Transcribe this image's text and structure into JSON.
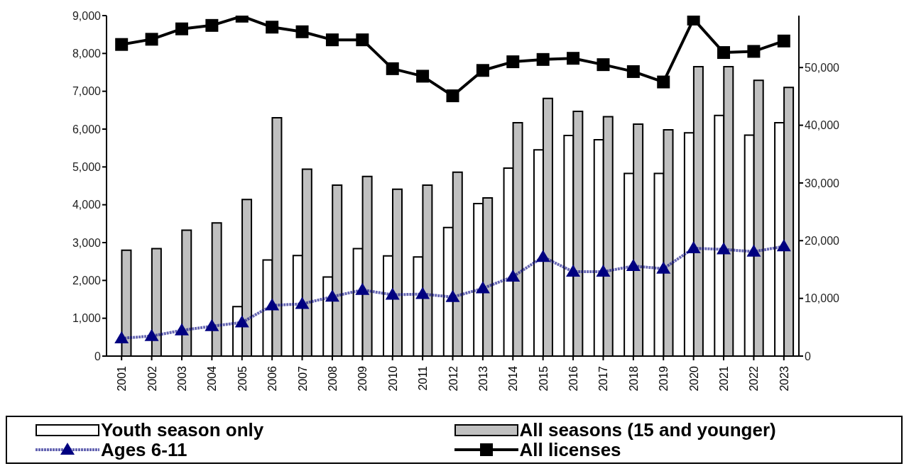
{
  "chart_data": {
    "type": "bar",
    "categories": [
      "2001",
      "2002",
      "2003",
      "2004",
      "2005",
      "2006",
      "2007",
      "2008",
      "2009",
      "2010",
      "2011",
      "2012",
      "2013",
      "2014",
      "2015",
      "2016",
      "2017",
      "2018",
      "2019",
      "2020",
      "2021",
      "2022",
      "2023"
    ],
    "series": [
      {
        "name": "Youth season only",
        "color": "#ffffff",
        "values": [
          0,
          0,
          0,
          0,
          1310,
          2540,
          2660,
          2090,
          2840,
          2650,
          2620,
          3400,
          4030,
          4970,
          5450,
          5830,
          5720,
          4830,
          4830,
          5900,
          6360,
          5840,
          6170
        ]
      },
      {
        "name": "All seasons (15 and younger)",
        "color": "#c0c0c0",
        "values": [
          2800,
          2840,
          3330,
          3520,
          4140,
          6300,
          4940,
          4520,
          4750,
          4410,
          4520,
          4860,
          4180,
          6170,
          6810,
          6470,
          6330,
          6130,
          5980,
          7650,
          7650,
          7290,
          7100
        ]
      },
      {
        "name": "Ages 6-11",
        "type": "line",
        "color": "#000080",
        "marker": "triangle",
        "line_style": "dotted",
        "values": [
          470,
          530,
          680,
          790,
          890,
          1340,
          1380,
          1570,
          1750,
          1620,
          1640,
          1560,
          1790,
          2100,
          2620,
          2230,
          2230,
          2380,
          2310,
          2850,
          2820,
          2760,
          2900
        ]
      },
      {
        "name": "All licenses",
        "type": "line",
        "axis": "y2",
        "color": "#000000",
        "marker": "square",
        "values": [
          54000,
          54900,
          56700,
          57300,
          58900,
          57000,
          56200,
          54800,
          54800,
          49800,
          48500,
          45100,
          49500,
          51000,
          51400,
          51600,
          50500,
          49300,
          47500,
          58400,
          52600,
          52800,
          54600
        ]
      }
    ],
    "ylim": [
      0,
      9000
    ],
    "yticks": [
      {
        "value": 0,
        "label": "0"
      },
      {
        "value": 1000,
        "label": "1,000"
      },
      {
        "value": 2000,
        "label": "2,000"
      },
      {
        "value": 3000,
        "label": "3,000"
      },
      {
        "value": 4000,
        "label": "4,000"
      },
      {
        "value": 5000,
        "label": "5,000"
      },
      {
        "value": 6000,
        "label": "6,000"
      },
      {
        "value": 7000,
        "label": "7,000"
      },
      {
        "value": 8000,
        "label": "8,000"
      },
      {
        "value": 9000,
        "label": "9,000"
      }
    ],
    "y2lim": [
      0,
      59000
    ],
    "y2ticks": [
      {
        "value": 0,
        "label": "0"
      },
      {
        "value": 10000,
        "label": "10,000"
      },
      {
        "value": 20000,
        "label": "20,000"
      },
      {
        "value": 30000,
        "label": "30,000"
      },
      {
        "value": 40000,
        "label": "40,000"
      },
      {
        "value": 50000,
        "label": "50,000"
      }
    ],
    "grid": false,
    "legend": "bottom"
  }
}
